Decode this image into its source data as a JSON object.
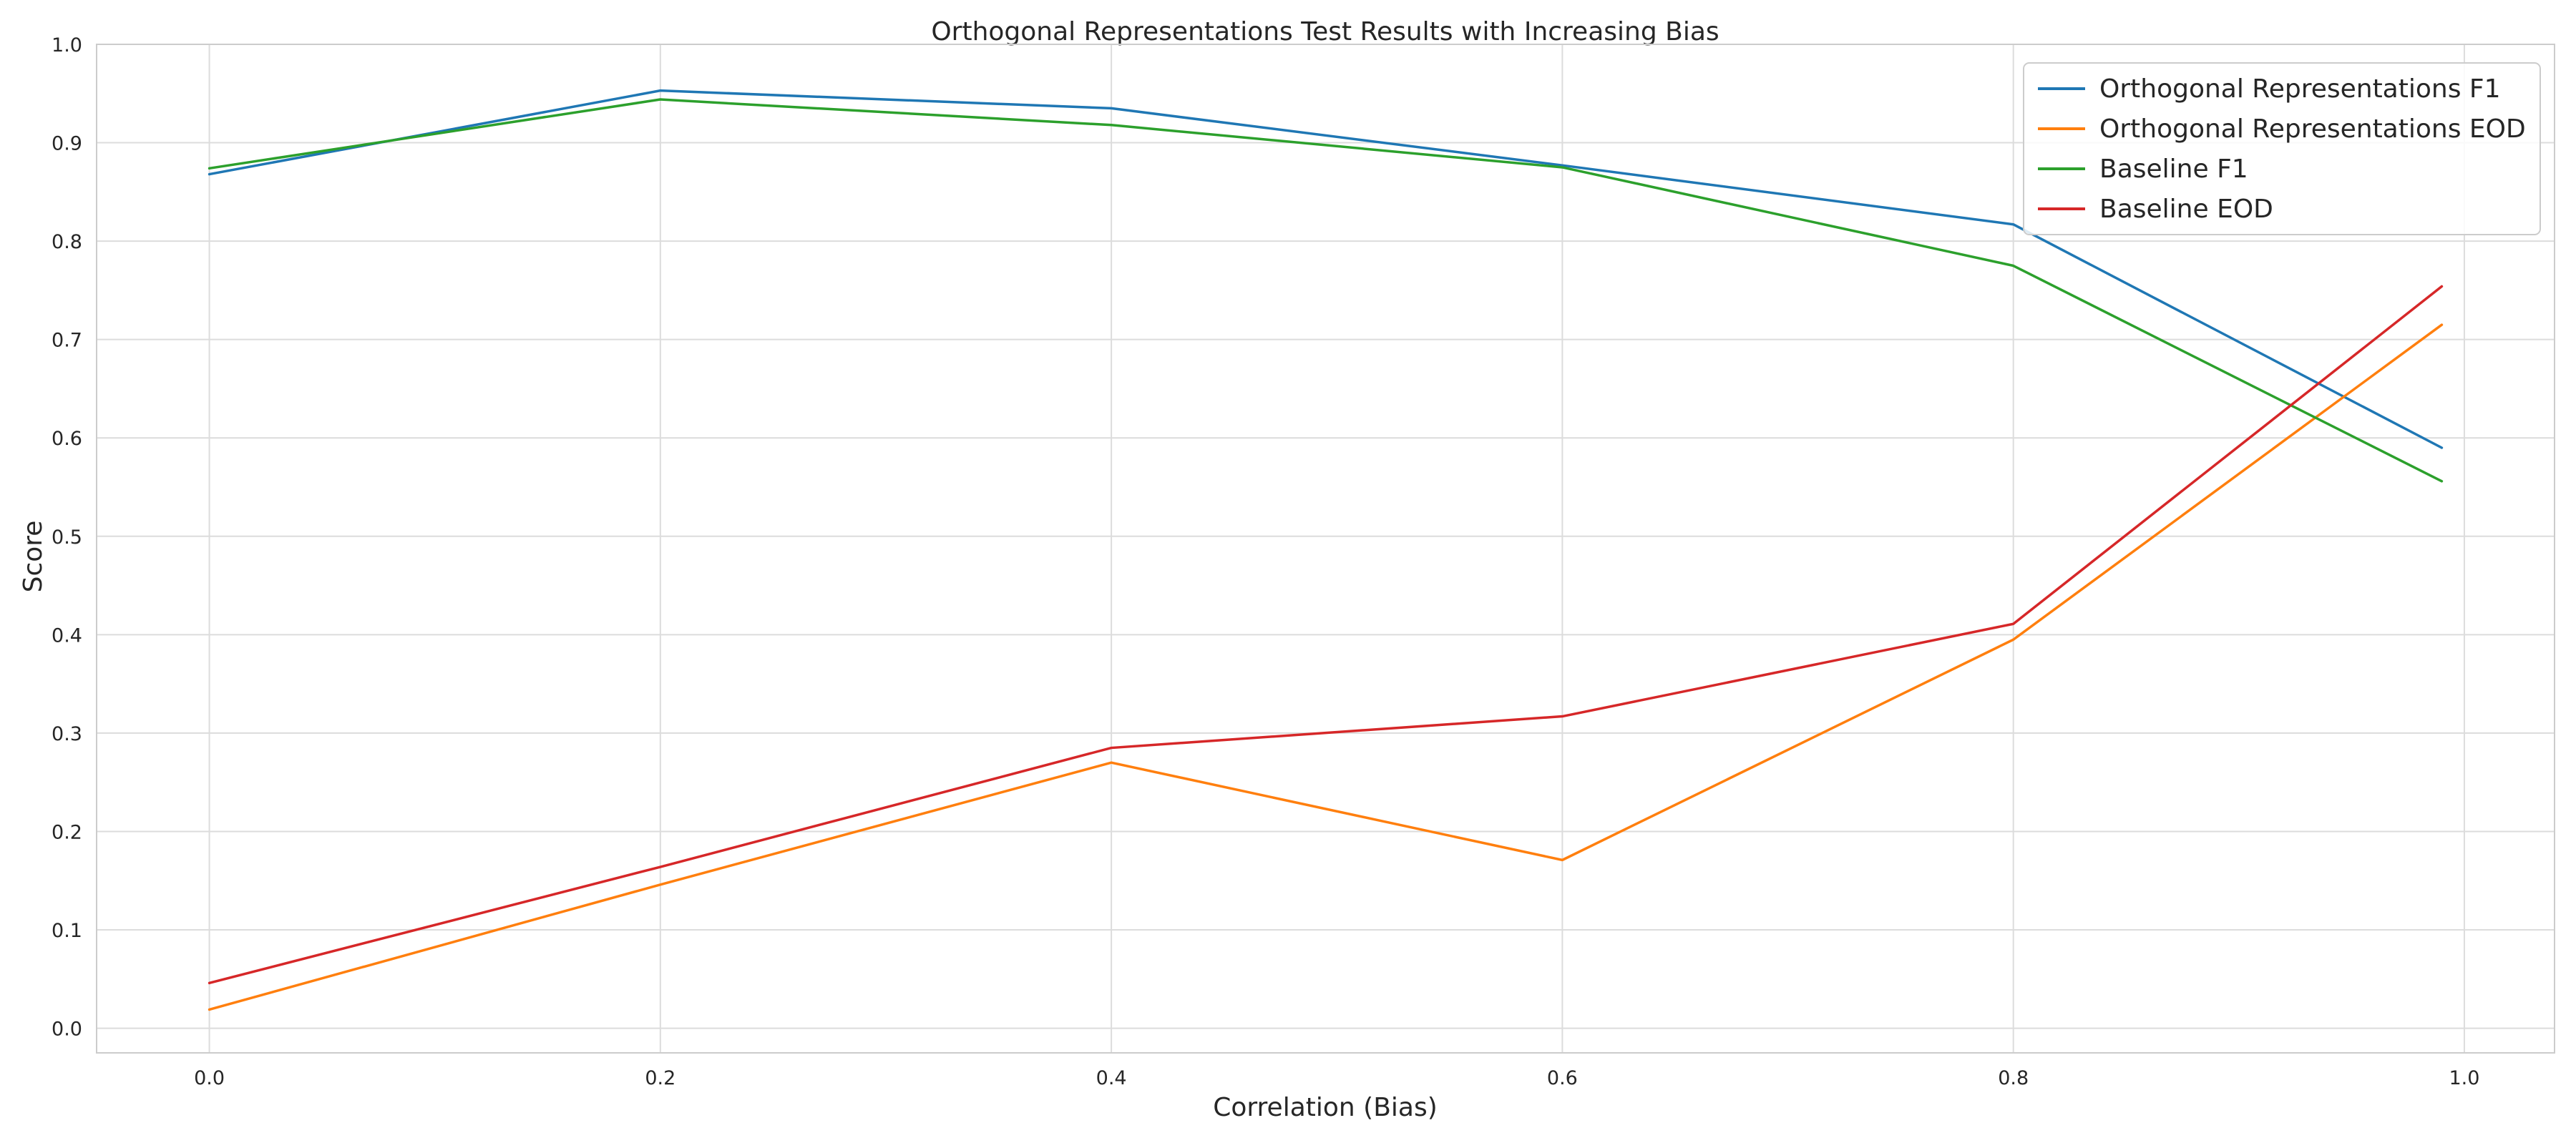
{
  "chart_data": {
    "type": "line",
    "title": "Orthogonal Representations Test Results with Increasing Bias",
    "xlabel": "Correlation (Bias)",
    "ylabel": "Score",
    "xlim": [
      -0.05,
      1.04
    ],
    "ylim": [
      -0.025,
      1.0
    ],
    "xticks": [
      "0.0",
      "0.2",
      "0.4",
      "0.6",
      "0.8",
      "1.0"
    ],
    "yticks": [
      "0.0",
      "0.1",
      "0.2",
      "0.3",
      "0.4",
      "0.5",
      "0.6",
      "0.7",
      "0.8",
      "0.9",
      "1.0"
    ],
    "grid": true,
    "legend_position": "top-right",
    "x": [
      0.0,
      0.2,
      0.4,
      0.6,
      0.8,
      0.99
    ],
    "series": [
      {
        "name": "Orthogonal Representations F1",
        "color": "#1f77b4",
        "values": [
          0.868,
          0.953,
          0.935,
          0.877,
          0.817,
          0.59
        ]
      },
      {
        "name": "Orthogonal Representations EOD",
        "color": "#ff7f0e",
        "values": [
          0.019,
          0.146,
          0.27,
          0.171,
          0.395,
          0.715
        ]
      },
      {
        "name": "Baseline F1",
        "color": "#2ca02c",
        "values": [
          0.874,
          0.944,
          0.918,
          0.875,
          0.775,
          0.556
        ]
      },
      {
        "name": "Baseline EOD",
        "color": "#d62728",
        "values": [
          0.046,
          0.164,
          0.285,
          0.317,
          0.411,
          0.754
        ]
      }
    ]
  }
}
